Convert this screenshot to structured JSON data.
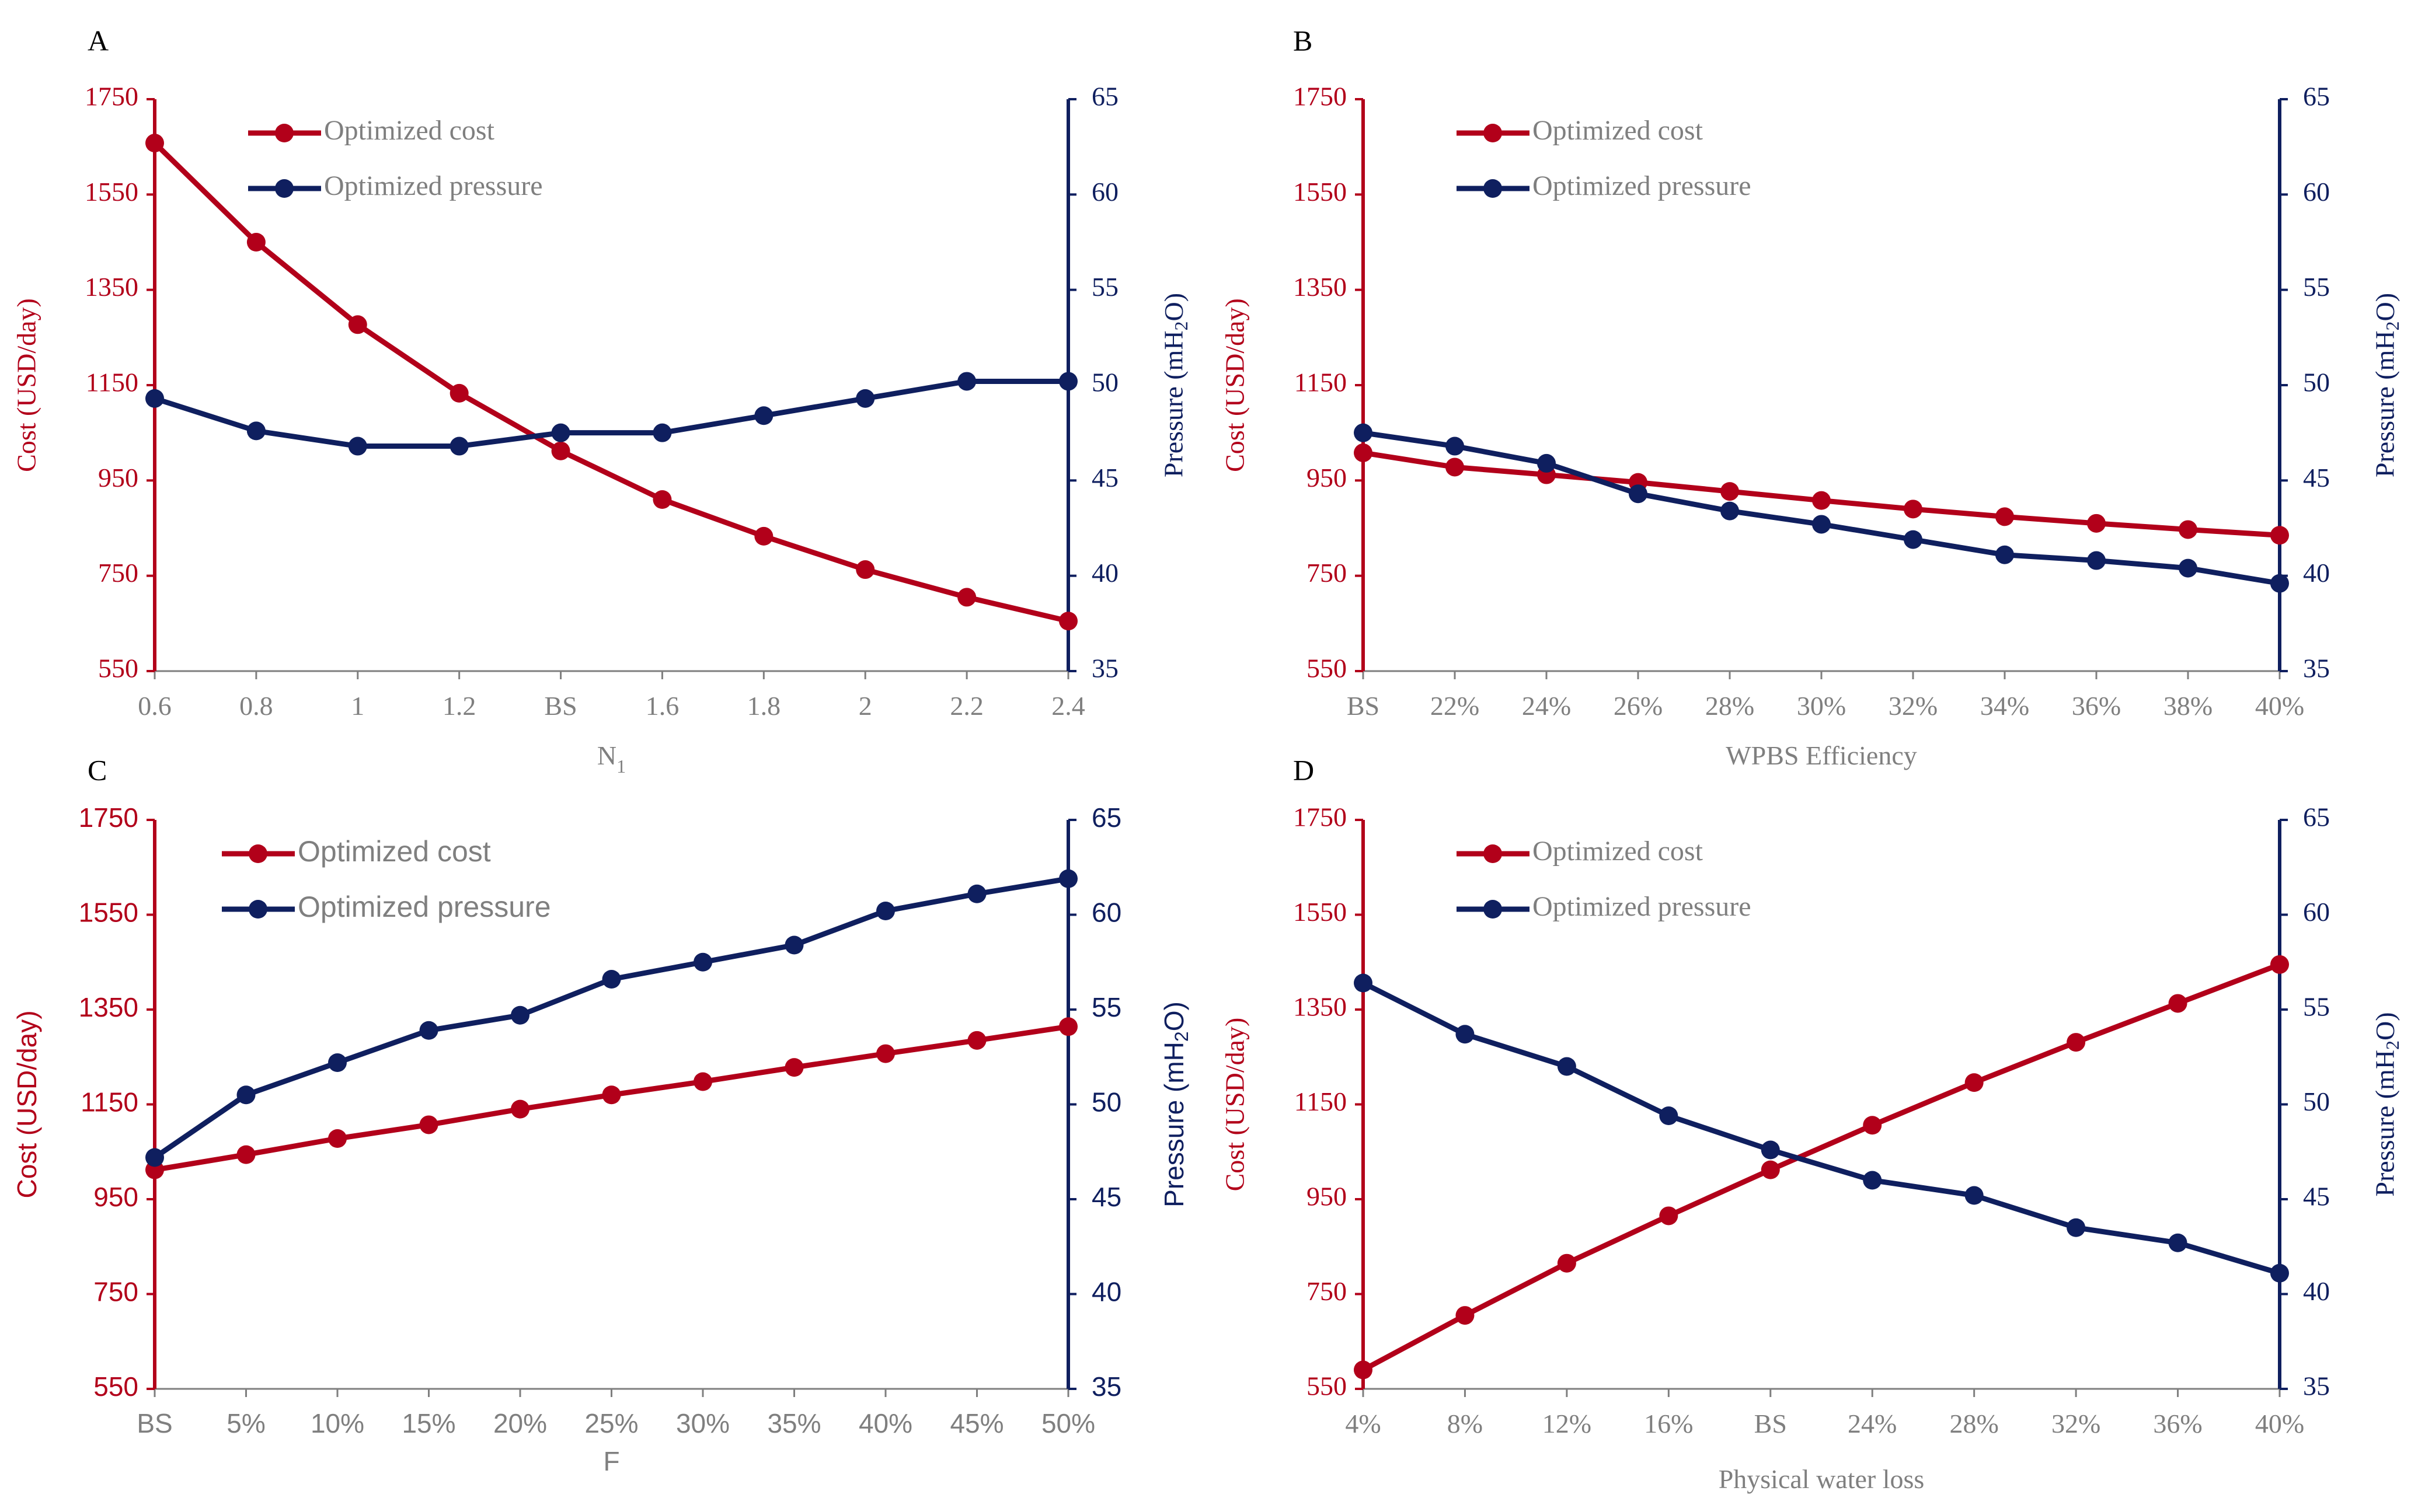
{
  "colors": {
    "cost": "#b2001a",
    "pressure": "#0f1f5f",
    "tick_text": "#7f7f7f",
    "panel_letter": "#000000"
  },
  "chart_data": [
    {
      "panel": "A",
      "type": "line",
      "font": "serif",
      "xlabel": "N",
      "xlabel_sub": "1",
      "categories": [
        "0.6",
        "0.8",
        "1",
        "1.2",
        "BS",
        "1.6",
        "1.8",
        "2",
        "2.2",
        "2.4"
      ],
      "y_left": {
        "label": "Cost (USD/day)",
        "ticks": [
          "550",
          "750",
          "950",
          "1150",
          "1350",
          "1550",
          "1750"
        ],
        "ylim": [
          550,
          1750
        ]
      },
      "y_right": {
        "label_pre": "Pressure (mH",
        "label_sub": "2",
        "label_post": "O)",
        "ticks": [
          "35",
          "40",
          "45",
          "50",
          "55",
          "60",
          "65"
        ],
        "ylim": [
          35,
          65
        ]
      },
      "series": [
        {
          "name": "Optimized cost",
          "axis": "left",
          "color": "#b2001a",
          "values": [
            1658,
            1450,
            1277,
            1133,
            1012,
            910,
            833,
            763,
            705,
            655
          ]
        },
        {
          "name": "Optimized pressure",
          "axis": "right",
          "color": "#0f1f5f",
          "values": [
            49.3,
            47.6,
            46.8,
            46.8,
            47.5,
            47.5,
            48.4,
            49.3,
            50.2,
            50.2
          ]
        }
      ]
    },
    {
      "panel": "B",
      "type": "line",
      "font": "serif",
      "xlabel": "WPBS Efficiency",
      "xlabel_sub": "",
      "categories": [
        "BS",
        "22%",
        "24%",
        "26%",
        "28%",
        "30%",
        "32%",
        "34%",
        "36%",
        "38%",
        "40%"
      ],
      "y_left": {
        "label": "Cost (USD/day)",
        "ticks": [
          "550",
          "750",
          "950",
          "1150",
          "1350",
          "1550",
          "1750"
        ],
        "ylim": [
          550,
          1750
        ]
      },
      "y_right": {
        "label_pre": "Pressure (mH",
        "label_sub": "2",
        "label_post": "O)",
        "ticks": [
          "35",
          "40",
          "45",
          "50",
          "55",
          "60",
          "65"
        ],
        "ylim": [
          35,
          65
        ]
      },
      "series": [
        {
          "name": "Optimized cost",
          "axis": "left",
          "color": "#b2001a",
          "values": [
            1008,
            978,
            962,
            946,
            927,
            908,
            890,
            874,
            860,
            847,
            835
          ]
        },
        {
          "name": "Optimized pressure",
          "axis": "right",
          "color": "#0f1f5f",
          "values": [
            47.5,
            46.8,
            45.9,
            44.3,
            43.4,
            42.7,
            41.9,
            41.1,
            40.8,
            40.4,
            39.6
          ]
        }
      ]
    },
    {
      "panel": "C",
      "type": "line",
      "font": "sans",
      "xlabel": "F",
      "xlabel_sub": "",
      "categories": [
        "BS",
        "5%",
        "10%",
        "15%",
        "20%",
        "25%",
        "30%",
        "35%",
        "40%",
        "45%",
        "50%"
      ],
      "y_left": {
        "label": "Cost (USD/day)",
        "ticks": [
          "550",
          "750",
          "950",
          "1150",
          "1350",
          "1550",
          "1750"
        ],
        "ylim": [
          550,
          1750
        ]
      },
      "y_right": {
        "label_pre": "Pressure (mH",
        "label_sub": "2",
        "label_post": "O)",
        "ticks": [
          "35",
          "40",
          "45",
          "50",
          "55",
          "60",
          "65"
        ],
        "ylim": [
          35,
          65
        ]
      },
      "series": [
        {
          "name": "Optimized cost",
          "axis": "left",
          "color": "#b2001a",
          "values": [
            1012,
            1044,
            1078,
            1107,
            1140,
            1170,
            1198,
            1228,
            1257,
            1285,
            1314
          ]
        },
        {
          "name": "Optimized pressure",
          "axis": "right",
          "color": "#0f1f5f",
          "values": [
            47.2,
            50.5,
            52.2,
            53.9,
            54.7,
            56.6,
            57.5,
            58.4,
            60.2,
            61.1,
            61.9
          ]
        }
      ]
    },
    {
      "panel": "D",
      "type": "line",
      "font": "serif",
      "xlabel": "Physical water loss",
      "xlabel_sub": "",
      "categories": [
        "4%",
        "8%",
        "12%",
        "16%",
        "BS",
        "24%",
        "28%",
        "32%",
        "36%",
        "40%"
      ],
      "y_left": {
        "label": "Cost (USD/day)",
        "ticks": [
          "550",
          "750",
          "950",
          "1150",
          "1350",
          "1550",
          "1750"
        ],
        "ylim": [
          550,
          1750
        ]
      },
      "y_right": {
        "label_pre": "Pressure (mH",
        "label_sub": "2",
        "label_post": "O)",
        "ticks": [
          "35",
          "40",
          "45",
          "50",
          "55",
          "60",
          "65"
        ],
        "ylim": [
          35,
          65
        ]
      },
      "series": [
        {
          "name": "Optimized cost",
          "axis": "left",
          "color": "#b2001a",
          "values": [
            590,
            705,
            815,
            915,
            1012,
            1106,
            1196,
            1281,
            1363,
            1445
          ]
        },
        {
          "name": "Optimized pressure",
          "axis": "right",
          "color": "#0f1f5f",
          "values": [
            56.4,
            53.7,
            52.0,
            49.4,
            47.6,
            46.0,
            45.2,
            43.5,
            42.7,
            41.1
          ]
        }
      ]
    }
  ]
}
